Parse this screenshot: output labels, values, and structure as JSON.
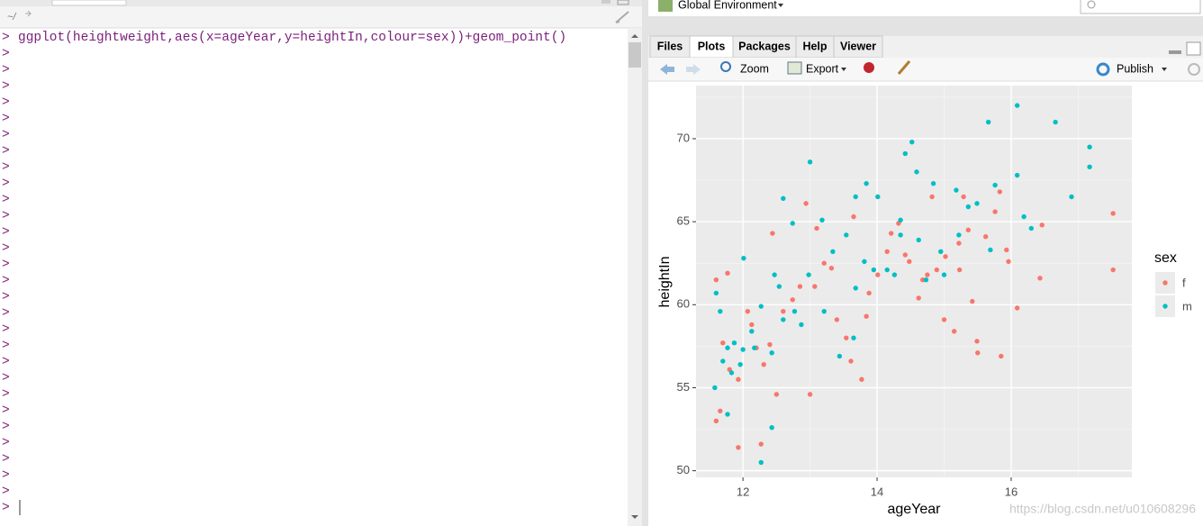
{
  "left_pane": {
    "path": "~/",
    "console": {
      "command": "ggplot(heightweight,aes(x=ageYear,y=heightIn,colour=sex))+geom_point()",
      "prompts": [
        ">",
        ">",
        ">",
        ">",
        ">",
        ">",
        ">",
        ">",
        ">",
        ">",
        ">",
        ">",
        ">",
        ">",
        ">",
        ">",
        ">",
        ">",
        ">",
        ">",
        ">",
        ">",
        ">",
        ">",
        ">",
        ">",
        ">",
        ">",
        ">",
        ">"
      ]
    }
  },
  "right_pane": {
    "environment": "Global Environment",
    "tabs": [
      "Files",
      "Plots",
      "Packages",
      "Help",
      "Viewer"
    ],
    "toolbar": [
      "Zoom",
      "Export",
      "Publish"
    ],
    "watermark": "https://blog.csdn.net/u010608296"
  },
  "chart_data": {
    "type": "scatter",
    "x_label": "ageYear",
    "y_label": "heightIn",
    "legend_title": "sex",
    "xlim": [
      11.3,
      17.8
    ],
    "ylim": [
      49.6,
      73.2
    ],
    "xticks": [
      12,
      14,
      16
    ],
    "yticks": [
      50,
      55,
      60,
      65,
      70
    ],
    "grid": true,
    "series": [
      {
        "name": "f",
        "color": "#F8766D",
        "x": [
          11.6,
          11.66,
          11.93,
          12.27,
          12.5,
          13.0,
          13.77,
          11.6,
          11.77,
          12.07,
          12.44,
          12.94,
          13.1,
          13.32,
          13.65,
          13.84,
          14.21,
          14.32,
          14.48,
          14.68,
          14.82,
          15.0,
          15.15,
          15.23,
          15.29,
          15.42,
          15.49,
          15.5,
          15.76,
          15.83,
          15.85,
          15.93,
          15.96,
          16.09,
          16.43,
          16.46,
          17.52,
          17.52,
          11.7,
          11.8,
          11.93,
          12.13,
          12.2,
          12.31,
          12.4,
          12.6,
          12.74,
          12.85,
          13.07,
          13.21,
          13.4,
          13.54,
          13.61,
          13.88,
          14.01,
          14.15,
          14.42,
          14.62,
          14.75,
          14.89,
          15.02,
          15.22,
          15.36,
          15.62
        ],
        "y": [
          53.0,
          53.6,
          51.4,
          51.6,
          54.6,
          54.6,
          55.5,
          61.5,
          61.9,
          59.6,
          64.3,
          66.1,
          64.6,
          62.2,
          65.3,
          59.3,
          64.3,
          64.9,
          62.6,
          61.5,
          66.5,
          59.1,
          58.4,
          62.1,
          66.5,
          60.2,
          57.8,
          57.1,
          65.6,
          66.8,
          56.9,
          63.3,
          62.6,
          59.8,
          61.6,
          64.8,
          65.5,
          62.1,
          57.7,
          56.1,
          55.5,
          58.8,
          57.4,
          56.4,
          57.6,
          59.6,
          60.3,
          61.1,
          61.1,
          62.5,
          59.1,
          58.0,
          56.6,
          60.7,
          61.8,
          63.2,
          63.0,
          60.4,
          61.8,
          62.1,
          62.9,
          63.7,
          64.5,
          64.1
        ]
      },
      {
        "name": "m",
        "color": "#00BFC4",
        "x": [
          11.58,
          11.77,
          12.27,
          12.43,
          13.0,
          12.01,
          12.6,
          12.74,
          13.18,
          13.68,
          13.84,
          14.01,
          14.42,
          14.52,
          14.59,
          14.84,
          15.18,
          15.66,
          16.09,
          16.09,
          16.66,
          17.17,
          17.17,
          16.9,
          16.19,
          16.3,
          15.69,
          15.49,
          15.22,
          15.0,
          14.73,
          14.35,
          14.26,
          13.95,
          13.68,
          13.65,
          13.44,
          13.21,
          12.98,
          12.77,
          12.6,
          12.47,
          12.27,
          12.13,
          12.0,
          11.87,
          11.77,
          11.66,
          11.6,
          11.7,
          11.83,
          11.96,
          12.17,
          12.43,
          12.54,
          12.87,
          13.34,
          13.54,
          13.81,
          14.15,
          14.35,
          14.62,
          14.95,
          15.36,
          15.76
        ],
        "y": [
          55.0,
          53.4,
          50.5,
          52.6,
          68.6,
          62.8,
          66.4,
          64.9,
          65.1,
          66.5,
          67.3,
          66.5,
          69.1,
          69.8,
          68.0,
          67.3,
          66.9,
          71.0,
          72.0,
          67.8,
          71.0,
          69.5,
          68.3,
          66.5,
          65.3,
          64.6,
          63.3,
          66.1,
          64.2,
          61.8,
          61.5,
          65.1,
          61.8,
          62.1,
          61.0,
          58.0,
          56.9,
          59.6,
          61.8,
          59.6,
          59.1,
          61.8,
          59.9,
          58.4,
          57.3,
          57.7,
          57.4,
          59.6,
          60.7,
          56.6,
          55.9,
          56.4,
          57.4,
          57.1,
          61.1,
          58.8,
          63.2,
          64.2,
          62.6,
          62.1,
          64.2,
          63.9,
          63.2,
          65.9,
          67.2
        ]
      }
    ]
  }
}
